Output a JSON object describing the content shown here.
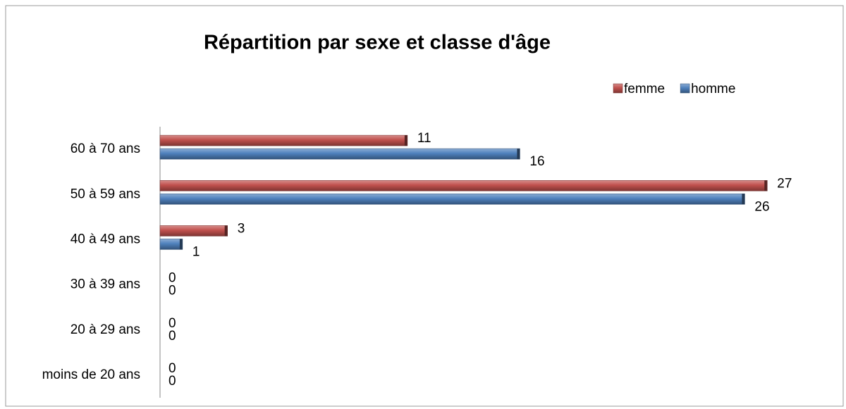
{
  "chart_data": {
    "type": "bar",
    "orientation": "horizontal",
    "title": "Répartition par sexe et classe d'âge",
    "categories": [
      "moins de 20 ans",
      "20 à 29 ans",
      "30 à 39 ans",
      "40 à 49 ans",
      "50 à 59 ans",
      "60 à 70 ans"
    ],
    "series": [
      {
        "name": "femme",
        "color": "#c0504d",
        "values": [
          0,
          0,
          0,
          3,
          27,
          11
        ]
      },
      {
        "name": "homme",
        "color": "#4f81bd",
        "values": [
          0,
          0,
          0,
          1,
          26,
          16
        ]
      }
    ],
    "xlim": [
      0,
      30
    ],
    "legend": "top-right"
  }
}
